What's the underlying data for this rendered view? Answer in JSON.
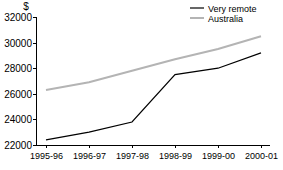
{
  "chart_data": {
    "type": "line",
    "y_label": "$",
    "categories": [
      "1995-96",
      "1996-97",
      "1997-98",
      "1998-99",
      "1999-00",
      "2000-01"
    ],
    "series": [
      {
        "name": "Very remote",
        "color": "#000000",
        "values": [
          22400,
          23000,
          23800,
          27500,
          28000,
          29200
        ]
      },
      {
        "name": "Australia",
        "color": "#b4b4b4",
        "values": [
          26300,
          26900,
          27800,
          28700,
          29500,
          30500
        ]
      }
    ],
    "ylim": [
      22000,
      32000
    ],
    "yticks": [
      22000,
      24000,
      26000,
      28000,
      30000,
      32000
    ],
    "grid": false,
    "legend": "top-right"
  }
}
